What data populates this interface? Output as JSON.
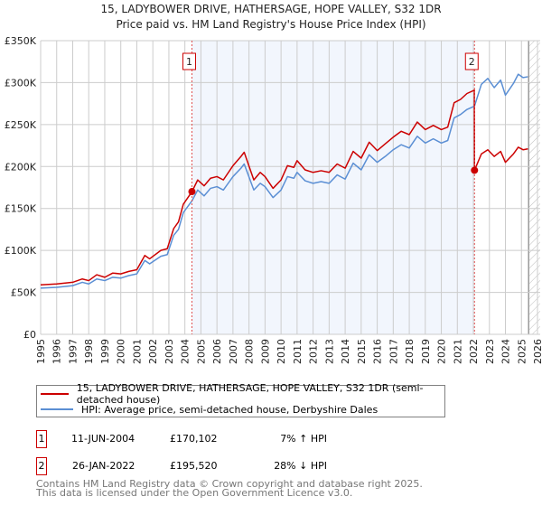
{
  "chart_data": {
    "type": "line",
    "title": "15, LADYBOWER DRIVE, HATHERSAGE, HOPE VALLEY, S32 1DR",
    "subtitle": "Price paid vs. HM Land Registry's House Price Index (HPI)",
    "xlim": [
      1995,
      2026
    ],
    "ylim": [
      0,
      350000
    ],
    "yticks": [
      {
        "v": 0,
        "label": "£0"
      },
      {
        "v": 50000,
        "label": "£50K"
      },
      {
        "v": 100000,
        "label": "£100K"
      },
      {
        "v": 150000,
        "label": "£150K"
      },
      {
        "v": 200000,
        "label": "£200K"
      },
      {
        "v": 250000,
        "label": "£250K"
      },
      {
        "v": 300000,
        "label": "£300K"
      },
      {
        "v": 350000,
        "label": "£350K"
      }
    ],
    "xticks": [
      "1995",
      "1996",
      "1997",
      "1998",
      "1999",
      "2000",
      "2001",
      "2002",
      "2003",
      "2004",
      "2005",
      "2006",
      "2007",
      "2008",
      "2009",
      "2010",
      "2011",
      "2012",
      "2013",
      "2014",
      "2015",
      "2016",
      "2017",
      "2018",
      "2019",
      "2020",
      "2021",
      "2022",
      "2023",
      "2024",
      "2025",
      "2026"
    ],
    "grid": true,
    "shaded_range": [
      2004.44,
      2022.07
    ],
    "hatched_from": 2025.45,
    "series": [
      {
        "name": "15, LADYBOWER DRIVE, HATHERSAGE, HOPE VALLEY, S32 1DR (semi-detached house)",
        "color": "#cc0000",
        "points": [
          [
            1995,
            59
          ],
          [
            1996,
            60
          ],
          [
            1997,
            62
          ],
          [
            1997.6,
            66
          ],
          [
            1998,
            64
          ],
          [
            1998.5,
            71
          ],
          [
            1999,
            68
          ],
          [
            1999.5,
            73
          ],
          [
            2000,
            72
          ],
          [
            2000.5,
            75
          ],
          [
            2001,
            77
          ],
          [
            2001.5,
            94
          ],
          [
            2001.8,
            90
          ],
          [
            2002.5,
            100
          ],
          [
            2002.9,
            102
          ],
          [
            2003.3,
            126
          ],
          [
            2003.6,
            134
          ],
          [
            2003.9,
            155
          ],
          [
            2004.44,
            170
          ],
          [
            2004.8,
            184
          ],
          [
            2005.2,
            177
          ],
          [
            2005.6,
            186
          ],
          [
            2006,
            188
          ],
          [
            2006.4,
            184
          ],
          [
            2007,
            201
          ],
          [
            2007.5,
            212
          ],
          [
            2007.7,
            217
          ],
          [
            2008.3,
            184
          ],
          [
            2008.7,
            193
          ],
          [
            2009,
            188
          ],
          [
            2009.5,
            174
          ],
          [
            2010,
            184
          ],
          [
            2010.4,
            201
          ],
          [
            2010.8,
            199
          ],
          [
            2011,
            207
          ],
          [
            2011.5,
            196
          ],
          [
            2012,
            193
          ],
          [
            2012.5,
            195
          ],
          [
            2013,
            193
          ],
          [
            2013.5,
            203
          ],
          [
            2014,
            198
          ],
          [
            2014.5,
            218
          ],
          [
            2015,
            210
          ],
          [
            2015.5,
            229
          ],
          [
            2016,
            219
          ],
          [
            2016.5,
            227
          ],
          [
            2017,
            235
          ],
          [
            2017.5,
            242
          ],
          [
            2018,
            238
          ],
          [
            2018.5,
            253
          ],
          [
            2019,
            244
          ],
          [
            2019.5,
            249
          ],
          [
            2020,
            244
          ],
          [
            2020.4,
            247
          ],
          [
            2020.8,
            276
          ],
          [
            2021.2,
            280
          ],
          [
            2021.6,
            287
          ],
          [
            2022.06,
            291
          ],
          [
            2022.07,
            195.5
          ],
          [
            2022.5,
            215
          ],
          [
            2022.9,
            220
          ],
          [
            2023.3,
            212
          ],
          [
            2023.7,
            218
          ],
          [
            2024,
            205
          ],
          [
            2024.5,
            215
          ],
          [
            2024.8,
            223
          ],
          [
            2025.1,
            220
          ],
          [
            2025.4,
            221
          ]
        ]
      },
      {
        "name": "HPI: Average price, semi-detached house, Derbyshire Dales",
        "color": "#5b8fd4",
        "points": [
          [
            1995,
            55
          ],
          [
            1996,
            56
          ],
          [
            1997,
            58
          ],
          [
            1997.6,
            62
          ],
          [
            1998,
            60
          ],
          [
            1998.5,
            66
          ],
          [
            1999,
            64
          ],
          [
            1999.5,
            68
          ],
          [
            2000,
            67
          ],
          [
            2000.5,
            70
          ],
          [
            2001,
            72
          ],
          [
            2001.5,
            88
          ],
          [
            2001.8,
            84
          ],
          [
            2002.5,
            93
          ],
          [
            2002.9,
            95
          ],
          [
            2003.3,
            118
          ],
          [
            2003.6,
            125
          ],
          [
            2003.9,
            145
          ],
          [
            2004.44,
            159
          ],
          [
            2004.8,
            172
          ],
          [
            2005.2,
            165
          ],
          [
            2005.6,
            174
          ],
          [
            2006,
            176
          ],
          [
            2006.4,
            172
          ],
          [
            2007,
            188
          ],
          [
            2007.5,
            198
          ],
          [
            2007.7,
            203
          ],
          [
            2008.3,
            172
          ],
          [
            2008.7,
            180
          ],
          [
            2009,
            176
          ],
          [
            2009.5,
            163
          ],
          [
            2010,
            172
          ],
          [
            2010.4,
            188
          ],
          [
            2010.8,
            186
          ],
          [
            2011,
            193
          ],
          [
            2011.5,
            183
          ],
          [
            2012,
            180
          ],
          [
            2012.5,
            182
          ],
          [
            2013,
            180
          ],
          [
            2013.5,
            190
          ],
          [
            2014,
            185
          ],
          [
            2014.5,
            204
          ],
          [
            2015,
            196
          ],
          [
            2015.5,
            214
          ],
          [
            2016,
            205
          ],
          [
            2016.5,
            212
          ],
          [
            2017,
            220
          ],
          [
            2017.5,
            226
          ],
          [
            2018,
            222
          ],
          [
            2018.5,
            236
          ],
          [
            2019,
            228
          ],
          [
            2019.5,
            233
          ],
          [
            2020,
            228
          ],
          [
            2020.4,
            231
          ],
          [
            2020.8,
            258
          ],
          [
            2021.2,
            262
          ],
          [
            2021.6,
            268
          ],
          [
            2022.07,
            272
          ],
          [
            2022.5,
            298
          ],
          [
            2022.9,
            305
          ],
          [
            2023.3,
            294
          ],
          [
            2023.7,
            303
          ],
          [
            2024,
            285
          ],
          [
            2024.5,
            299
          ],
          [
            2024.8,
            310
          ],
          [
            2025.1,
            306
          ],
          [
            2025.4,
            307
          ]
        ]
      }
    ],
    "value_unit": "£K",
    "sales": [
      {
        "label": "1",
        "x": 2004.44,
        "value": 170102
      },
      {
        "label": "2",
        "x": 2022.07,
        "value": 195520
      }
    ]
  },
  "legend": {
    "property": "15, LADYBOWER DRIVE, HATHERSAGE, HOPE VALLEY, S32 1DR (semi-detached house)",
    "hpi": "HPI: Average price, semi-detached house, Derbyshire Dales"
  },
  "transactions": [
    {
      "num": "1",
      "date": "11-JUN-2004",
      "price": "£170,102",
      "hpi": "7% ↑ HPI"
    },
    {
      "num": "2",
      "date": "26-JAN-2022",
      "price": "£195,520",
      "hpi": "28% ↓ HPI"
    }
  ],
  "footer": {
    "line1": "Contains HM Land Registry data © Crown copyright and database right 2025.",
    "line2": "This data is licensed under the Open Government Licence v3.0."
  }
}
